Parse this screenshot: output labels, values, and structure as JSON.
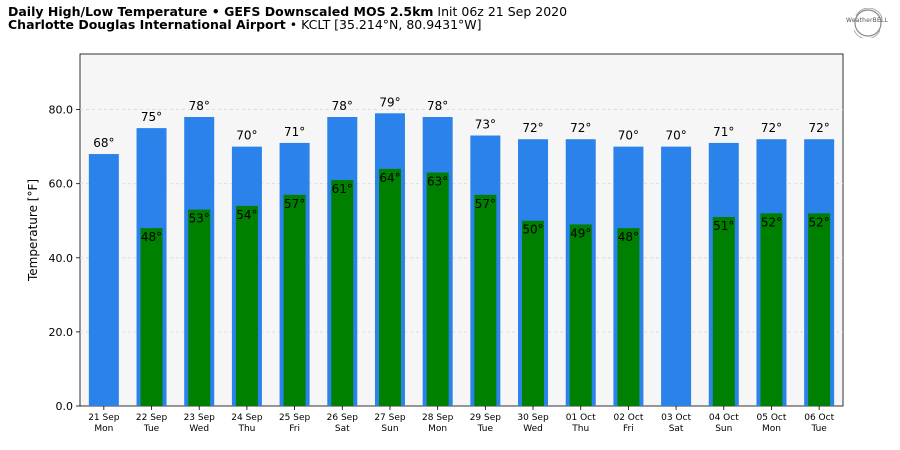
{
  "header": {
    "title_bold": "Daily High/Low Temperature • GEFS Downscaled MOS 2.5km",
    "title_normal": " Init 06z 21 Sep 2020",
    "subtitle_bold": "Charlotte Douglas International Airport",
    "subtitle_normal": " • KCLT [35.214°N, 80.9431°W]",
    "logo_text": "WeatherBELL"
  },
  "chart_data": {
    "type": "bar",
    "ylabel": "Temperature [°F]",
    "xlabel": "",
    "ylim": [
      0,
      95
    ],
    "yticks": [
      "0.0",
      "20.0",
      "40.0",
      "60.0",
      "80.0"
    ],
    "ytick_values": [
      0,
      20,
      40,
      60,
      80
    ],
    "grid": true,
    "categories": [
      {
        "date": "21 Sep",
        "day": "Mon"
      },
      {
        "date": "22 Sep",
        "day": "Tue"
      },
      {
        "date": "23 Sep",
        "day": "Wed"
      },
      {
        "date": "24 Sep",
        "day": "Thu"
      },
      {
        "date": "25 Sep",
        "day": "Fri"
      },
      {
        "date": "26 Sep",
        "day": "Sat"
      },
      {
        "date": "27 Sep",
        "day": "Sun"
      },
      {
        "date": "28 Sep",
        "day": "Mon"
      },
      {
        "date": "29 Sep",
        "day": "Tue"
      },
      {
        "date": "30 Sep",
        "day": "Wed"
      },
      {
        "date": "01 Oct",
        "day": "Thu"
      },
      {
        "date": "02 Oct",
        "day": "Fri"
      },
      {
        "date": "03 Oct",
        "day": "Sat"
      },
      {
        "date": "04 Oct",
        "day": "Sun"
      },
      {
        "date": "05 Oct",
        "day": "Mon"
      },
      {
        "date": "06 Oct",
        "day": "Tue"
      }
    ],
    "series": [
      {
        "color": "#2b82ea",
        "values": [
          68,
          75,
          78,
          70,
          71,
          78,
          79,
          78,
          73,
          72,
          72,
          70,
          70,
          71,
          72,
          72
        ],
        "labels": [
          "68°",
          "75°",
          "78°",
          "70°",
          "71°",
          "78°",
          "79°",
          "78°",
          "73°",
          "72°",
          "72°",
          "70°",
          "70°",
          "71°",
          "72°",
          "72°"
        ]
      },
      {
        "color": "#008000",
        "values": [
          null,
          48,
          53,
          54,
          57,
          61,
          64,
          63,
          57,
          50,
          49,
          48,
          null,
          51,
          52,
          52
        ],
        "labels": [
          "",
          "48°",
          "53°",
          "54°",
          "57°",
          "61°",
          "64°",
          "63°",
          "57°",
          "50°",
          "49°",
          "48°",
          "",
          "51°",
          "52°",
          "52°"
        ]
      }
    ]
  }
}
